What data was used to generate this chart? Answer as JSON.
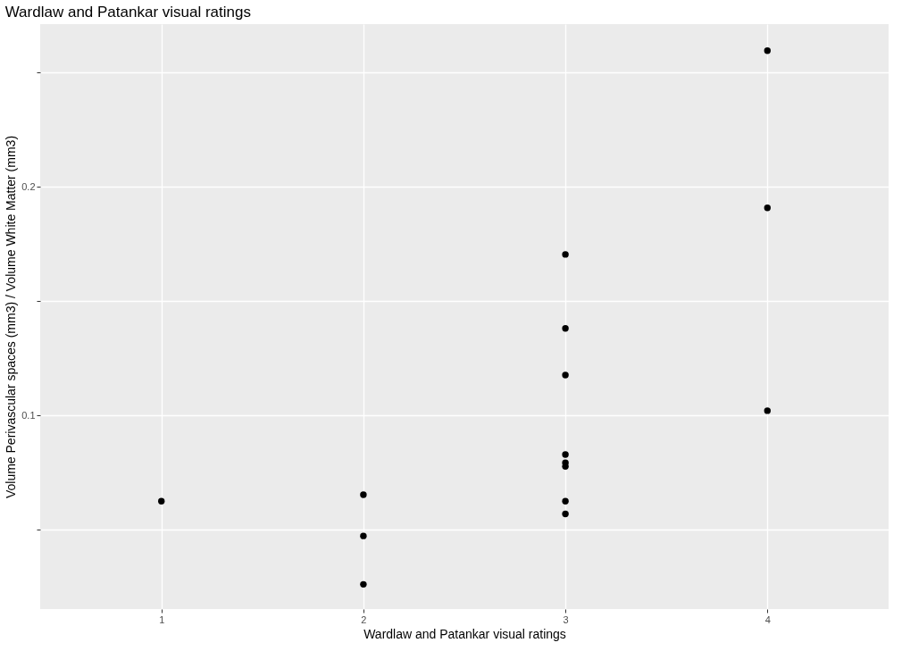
{
  "chart_data": {
    "type": "scatter",
    "title": "Wardlaw and Patankar visual ratings",
    "xlabel": "Wardlaw and Patankar visual ratings",
    "ylabel": "Volume Perivascular spaces (mm3) / Volume White Matter (mm3)",
    "x": [
      1,
      2,
      2,
      2,
      3,
      3,
      3,
      3,
      3,
      3,
      3,
      3,
      4,
      4,
      4
    ],
    "series": [
      {
        "color": "#000000",
        "values": [
          0.0624,
          0.0652,
          0.0472,
          0.026,
          0.1704,
          0.138,
          0.1176,
          0.0828,
          0.0792,
          0.0776,
          0.0624,
          0.0568,
          0.2596,
          0.1908,
          0.102
        ]
      }
    ],
    "xlim": [
      0.4,
      4.6
    ],
    "xticks": [
      1,
      2,
      3,
      4
    ],
    "ylim": [
      0.0152,
      0.2712
    ],
    "yticks": [
      {
        "value": 0.05,
        "label": null
      },
      0.1,
      {
        "value": 0.15,
        "label": null
      },
      0.2,
      {
        "value": 0.25,
        "label": null
      }
    ],
    "grid": true,
    "legend": false,
    "marker": "circle"
  }
}
